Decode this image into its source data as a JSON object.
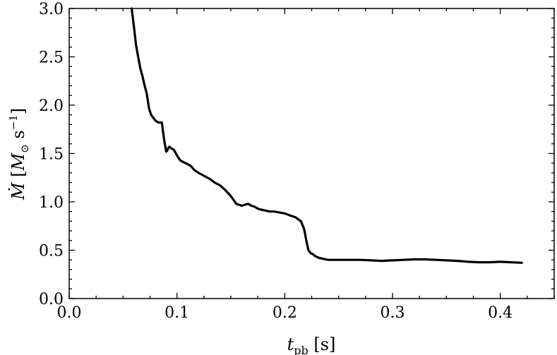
{
  "chart_data": {
    "type": "line",
    "title": "",
    "xlabel": "t_pb [s]",
    "ylabel": "Ṁ [M_⊙ s^-1]",
    "xlim": [
      0.0,
      0.45
    ],
    "ylim": [
      0.0,
      3.0
    ],
    "xticks": [
      "0.0",
      "0.1",
      "0.2",
      "0.3",
      "0.4"
    ],
    "yticks": [
      "0.0",
      "0.5",
      "1.0",
      "1.5",
      "2.0",
      "2.5",
      "3.0"
    ],
    "grid": false,
    "line_color": "#000000",
    "series": [
      {
        "x": [
          0.058,
          0.06,
          0.062,
          0.064,
          0.066,
          0.068,
          0.07,
          0.072,
          0.074,
          0.076,
          0.078,
          0.08,
          0.083,
          0.086,
          0.088,
          0.09,
          0.091,
          0.092,
          0.093,
          0.094,
          0.095,
          0.097,
          0.1,
          0.103,
          0.106,
          0.108,
          0.11,
          0.113,
          0.116,
          0.12,
          0.125,
          0.13,
          0.135,
          0.14,
          0.145,
          0.15,
          0.155,
          0.16,
          0.163,
          0.166,
          0.169,
          0.172,
          0.175,
          0.178,
          0.182,
          0.186,
          0.19,
          0.195,
          0.2,
          0.205,
          0.21,
          0.215,
          0.218,
          0.22,
          0.222,
          0.224,
          0.226,
          0.228,
          0.232,
          0.236,
          0.24,
          0.245,
          0.25,
          0.255,
          0.26,
          0.27,
          0.28,
          0.29,
          0.3,
          0.31,
          0.32,
          0.33,
          0.34,
          0.35,
          0.36,
          0.37,
          0.38,
          0.39,
          0.4,
          0.41,
          0.42
        ],
        "y": [
          3.0,
          2.82,
          2.62,
          2.5,
          2.38,
          2.3,
          2.2,
          2.12,
          1.97,
          1.9,
          1.87,
          1.84,
          1.82,
          1.82,
          1.65,
          1.52,
          1.53,
          1.56,
          1.57,
          1.56,
          1.55,
          1.54,
          1.48,
          1.43,
          1.41,
          1.4,
          1.39,
          1.37,
          1.33,
          1.3,
          1.27,
          1.24,
          1.2,
          1.17,
          1.12,
          1.06,
          0.98,
          0.96,
          0.97,
          0.98,
          0.96,
          0.95,
          0.93,
          0.92,
          0.91,
          0.9,
          0.9,
          0.89,
          0.88,
          0.86,
          0.84,
          0.8,
          0.72,
          0.6,
          0.5,
          0.47,
          0.46,
          0.44,
          0.42,
          0.41,
          0.4,
          0.4,
          0.4,
          0.4,
          0.4,
          0.4,
          0.395,
          0.39,
          0.395,
          0.4,
          0.405,
          0.405,
          0.4,
          0.395,
          0.39,
          0.38,
          0.375,
          0.375,
          0.38,
          0.375,
          0.37
        ]
      }
    ]
  }
}
